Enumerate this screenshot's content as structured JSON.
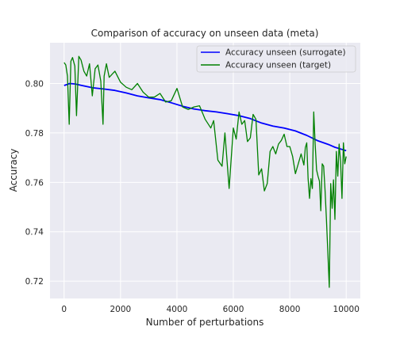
{
  "chart_data": {
    "type": "line",
    "title": "Comparison of accuracy on unseen data (meta)",
    "xlabel": "Number of perturbations",
    "ylabel": "Accuracy",
    "xlim": [
      -500,
      10500
    ],
    "ylim": [
      0.713,
      0.8165
    ],
    "x_ticks": [
      0,
      2000,
      4000,
      6000,
      8000,
      10000
    ],
    "y_ticks": [
      0.72,
      0.74,
      0.76,
      0.78,
      0.8
    ],
    "grid": true,
    "legend_position": "top-right",
    "background": "#eaeaf2",
    "series": [
      {
        "name": "Accuracy unseen (surrogate)",
        "color": "#0000ff",
        "x": [
          0,
          200,
          400,
          600,
          800,
          1000,
          1400,
          1800,
          2200,
          2600,
          3000,
          3400,
          3800,
          4200,
          4600,
          5000,
          5400,
          5800,
          6200,
          6600,
          7000,
          7400,
          7800,
          8200,
          8600,
          9000,
          9400,
          9600,
          9800,
          10000
        ],
        "y": [
          0.7992,
          0.8,
          0.7998,
          0.7993,
          0.7988,
          0.7983,
          0.7978,
          0.7972,
          0.7962,
          0.795,
          0.7942,
          0.7935,
          0.7922,
          0.7908,
          0.7897,
          0.789,
          0.7885,
          0.7878,
          0.787,
          0.7858,
          0.784,
          0.7828,
          0.782,
          0.7808,
          0.779,
          0.7768,
          0.7752,
          0.7742,
          0.7735,
          0.7728
        ]
      },
      {
        "name": "Accuracy unseen (target)",
        "color": "#008000",
        "x": [
          0,
          60,
          120,
          180,
          240,
          300,
          380,
          440,
          520,
          600,
          700,
          800,
          900,
          1000,
          1100,
          1200,
          1300,
          1380,
          1420,
          1500,
          1600,
          1800,
          2000,
          2200,
          2400,
          2600,
          2800,
          3000,
          3200,
          3400,
          3600,
          3800,
          4000,
          4200,
          4400,
          4600,
          4800,
          5000,
          5200,
          5300,
          5450,
          5600,
          5700,
          5850,
          6000,
          6100,
          6200,
          6300,
          6400,
          6500,
          6600,
          6700,
          6800,
          6900,
          7000,
          7100,
          7200,
          7300,
          7400,
          7500,
          7600,
          7700,
          7800,
          7900,
          8000,
          8100,
          8200,
          8300,
          8400,
          8500,
          8550,
          8600,
          8650,
          8700,
          8750,
          8800,
          8850,
          8900,
          8950,
          9000,
          9050,
          9100,
          9150,
          9200,
          9250,
          9300,
          9350,
          9400,
          9450,
          9500,
          9550,
          9600,
          9650,
          9700,
          9750,
          9800,
          9850,
          9900,
          9950,
          10000
        ],
        "y": [
          0.8085,
          0.8075,
          0.803,
          0.7835,
          0.809,
          0.8105,
          0.807,
          0.787,
          0.811,
          0.8095,
          0.805,
          0.803,
          0.808,
          0.795,
          0.806,
          0.8075,
          0.801,
          0.7835,
          0.803,
          0.808,
          0.8025,
          0.805,
          0.8005,
          0.7985,
          0.7975,
          0.8,
          0.7965,
          0.7945,
          0.7945,
          0.796,
          0.7925,
          0.793,
          0.798,
          0.7905,
          0.7895,
          0.7905,
          0.791,
          0.7855,
          0.782,
          0.785,
          0.769,
          0.7665,
          0.78,
          0.7575,
          0.782,
          0.7775,
          0.7885,
          0.7835,
          0.785,
          0.7765,
          0.778,
          0.7875,
          0.7855,
          0.763,
          0.7655,
          0.7565,
          0.7595,
          0.7725,
          0.7745,
          0.7715,
          0.7755,
          0.777,
          0.7795,
          0.7745,
          0.7745,
          0.7705,
          0.7635,
          0.7675,
          0.7715,
          0.767,
          0.774,
          0.776,
          0.7615,
          0.7535,
          0.7615,
          0.7575,
          0.7885,
          0.7755,
          0.765,
          0.7625,
          0.7605,
          0.7485,
          0.7675,
          0.7665,
          0.7565,
          0.745,
          0.7315,
          0.7175,
          0.7595,
          0.7495,
          0.761,
          0.745,
          0.7725,
          0.7625,
          0.7755,
          0.7685,
          0.7535,
          0.776,
          0.7675,
          0.7705
        ]
      }
    ]
  }
}
